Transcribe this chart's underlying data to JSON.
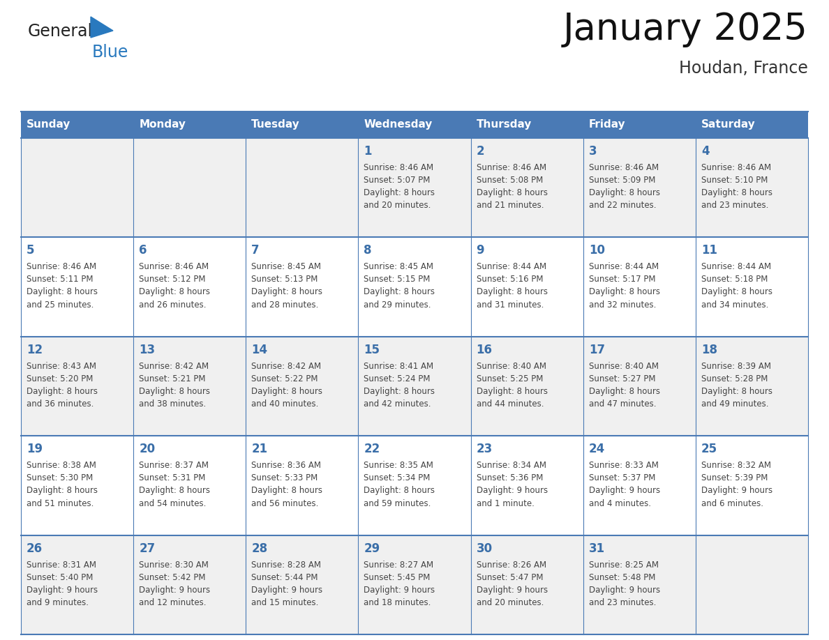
{
  "title": "January 2025",
  "subtitle": "Houdan, France",
  "header_bg": "#4a7ab5",
  "header_text_color": "#ffffff",
  "cell_bg_even": "#f0f0f0",
  "cell_bg_odd": "#ffffff",
  "day_names": [
    "Sunday",
    "Monday",
    "Tuesday",
    "Wednesday",
    "Thursday",
    "Friday",
    "Saturday"
  ],
  "title_color": "#111111",
  "subtitle_color": "#333333",
  "day_number_color": "#3a6ea8",
  "cell_text_color": "#444444",
  "grid_color": "#4a7ab5",
  "logo_general_color": "#222222",
  "logo_blue_color": "#2979be",
  "logo_triangle_color": "#2979be",
  "calendar": [
    [
      {
        "day": "",
        "sunrise": "",
        "sunset": "",
        "daylight": ""
      },
      {
        "day": "",
        "sunrise": "",
        "sunset": "",
        "daylight": ""
      },
      {
        "day": "",
        "sunrise": "",
        "sunset": "",
        "daylight": ""
      },
      {
        "day": "1",
        "sunrise": "8:46 AM",
        "sunset": "5:07 PM",
        "daylight": "8 hours\nand 20 minutes."
      },
      {
        "day": "2",
        "sunrise": "8:46 AM",
        "sunset": "5:08 PM",
        "daylight": "8 hours\nand 21 minutes."
      },
      {
        "day": "3",
        "sunrise": "8:46 AM",
        "sunset": "5:09 PM",
        "daylight": "8 hours\nand 22 minutes."
      },
      {
        "day": "4",
        "sunrise": "8:46 AM",
        "sunset": "5:10 PM",
        "daylight": "8 hours\nand 23 minutes."
      }
    ],
    [
      {
        "day": "5",
        "sunrise": "8:46 AM",
        "sunset": "5:11 PM",
        "daylight": "8 hours\nand 25 minutes."
      },
      {
        "day": "6",
        "sunrise": "8:46 AM",
        "sunset": "5:12 PM",
        "daylight": "8 hours\nand 26 minutes."
      },
      {
        "day": "7",
        "sunrise": "8:45 AM",
        "sunset": "5:13 PM",
        "daylight": "8 hours\nand 28 minutes."
      },
      {
        "day": "8",
        "sunrise": "8:45 AM",
        "sunset": "5:15 PM",
        "daylight": "8 hours\nand 29 minutes."
      },
      {
        "day": "9",
        "sunrise": "8:44 AM",
        "sunset": "5:16 PM",
        "daylight": "8 hours\nand 31 minutes."
      },
      {
        "day": "10",
        "sunrise": "8:44 AM",
        "sunset": "5:17 PM",
        "daylight": "8 hours\nand 32 minutes."
      },
      {
        "day": "11",
        "sunrise": "8:44 AM",
        "sunset": "5:18 PM",
        "daylight": "8 hours\nand 34 minutes."
      }
    ],
    [
      {
        "day": "12",
        "sunrise": "8:43 AM",
        "sunset": "5:20 PM",
        "daylight": "8 hours\nand 36 minutes."
      },
      {
        "day": "13",
        "sunrise": "8:42 AM",
        "sunset": "5:21 PM",
        "daylight": "8 hours\nand 38 minutes."
      },
      {
        "day": "14",
        "sunrise": "8:42 AM",
        "sunset": "5:22 PM",
        "daylight": "8 hours\nand 40 minutes."
      },
      {
        "day": "15",
        "sunrise": "8:41 AM",
        "sunset": "5:24 PM",
        "daylight": "8 hours\nand 42 minutes."
      },
      {
        "day": "16",
        "sunrise": "8:40 AM",
        "sunset": "5:25 PM",
        "daylight": "8 hours\nand 44 minutes."
      },
      {
        "day": "17",
        "sunrise": "8:40 AM",
        "sunset": "5:27 PM",
        "daylight": "8 hours\nand 47 minutes."
      },
      {
        "day": "18",
        "sunrise": "8:39 AM",
        "sunset": "5:28 PM",
        "daylight": "8 hours\nand 49 minutes."
      }
    ],
    [
      {
        "day": "19",
        "sunrise": "8:38 AM",
        "sunset": "5:30 PM",
        "daylight": "8 hours\nand 51 minutes."
      },
      {
        "day": "20",
        "sunrise": "8:37 AM",
        "sunset": "5:31 PM",
        "daylight": "8 hours\nand 54 minutes."
      },
      {
        "day": "21",
        "sunrise": "8:36 AM",
        "sunset": "5:33 PM",
        "daylight": "8 hours\nand 56 minutes."
      },
      {
        "day": "22",
        "sunrise": "8:35 AM",
        "sunset": "5:34 PM",
        "daylight": "8 hours\nand 59 minutes."
      },
      {
        "day": "23",
        "sunrise": "8:34 AM",
        "sunset": "5:36 PM",
        "daylight": "9 hours\nand 1 minute."
      },
      {
        "day": "24",
        "sunrise": "8:33 AM",
        "sunset": "5:37 PM",
        "daylight": "9 hours\nand 4 minutes."
      },
      {
        "day": "25",
        "sunrise": "8:32 AM",
        "sunset": "5:39 PM",
        "daylight": "9 hours\nand 6 minutes."
      }
    ],
    [
      {
        "day": "26",
        "sunrise": "8:31 AM",
        "sunset": "5:40 PM",
        "daylight": "9 hours\nand 9 minutes."
      },
      {
        "day": "27",
        "sunrise": "8:30 AM",
        "sunset": "5:42 PM",
        "daylight": "9 hours\nand 12 minutes."
      },
      {
        "day": "28",
        "sunrise": "8:28 AM",
        "sunset": "5:44 PM",
        "daylight": "9 hours\nand 15 minutes."
      },
      {
        "day": "29",
        "sunrise": "8:27 AM",
        "sunset": "5:45 PM",
        "daylight": "9 hours\nand 18 minutes."
      },
      {
        "day": "30",
        "sunrise": "8:26 AM",
        "sunset": "5:47 PM",
        "daylight": "9 hours\nand 20 minutes."
      },
      {
        "day": "31",
        "sunrise": "8:25 AM",
        "sunset": "5:48 PM",
        "daylight": "9 hours\nand 23 minutes."
      },
      {
        "day": "",
        "sunrise": "",
        "sunset": "",
        "daylight": ""
      }
    ]
  ]
}
